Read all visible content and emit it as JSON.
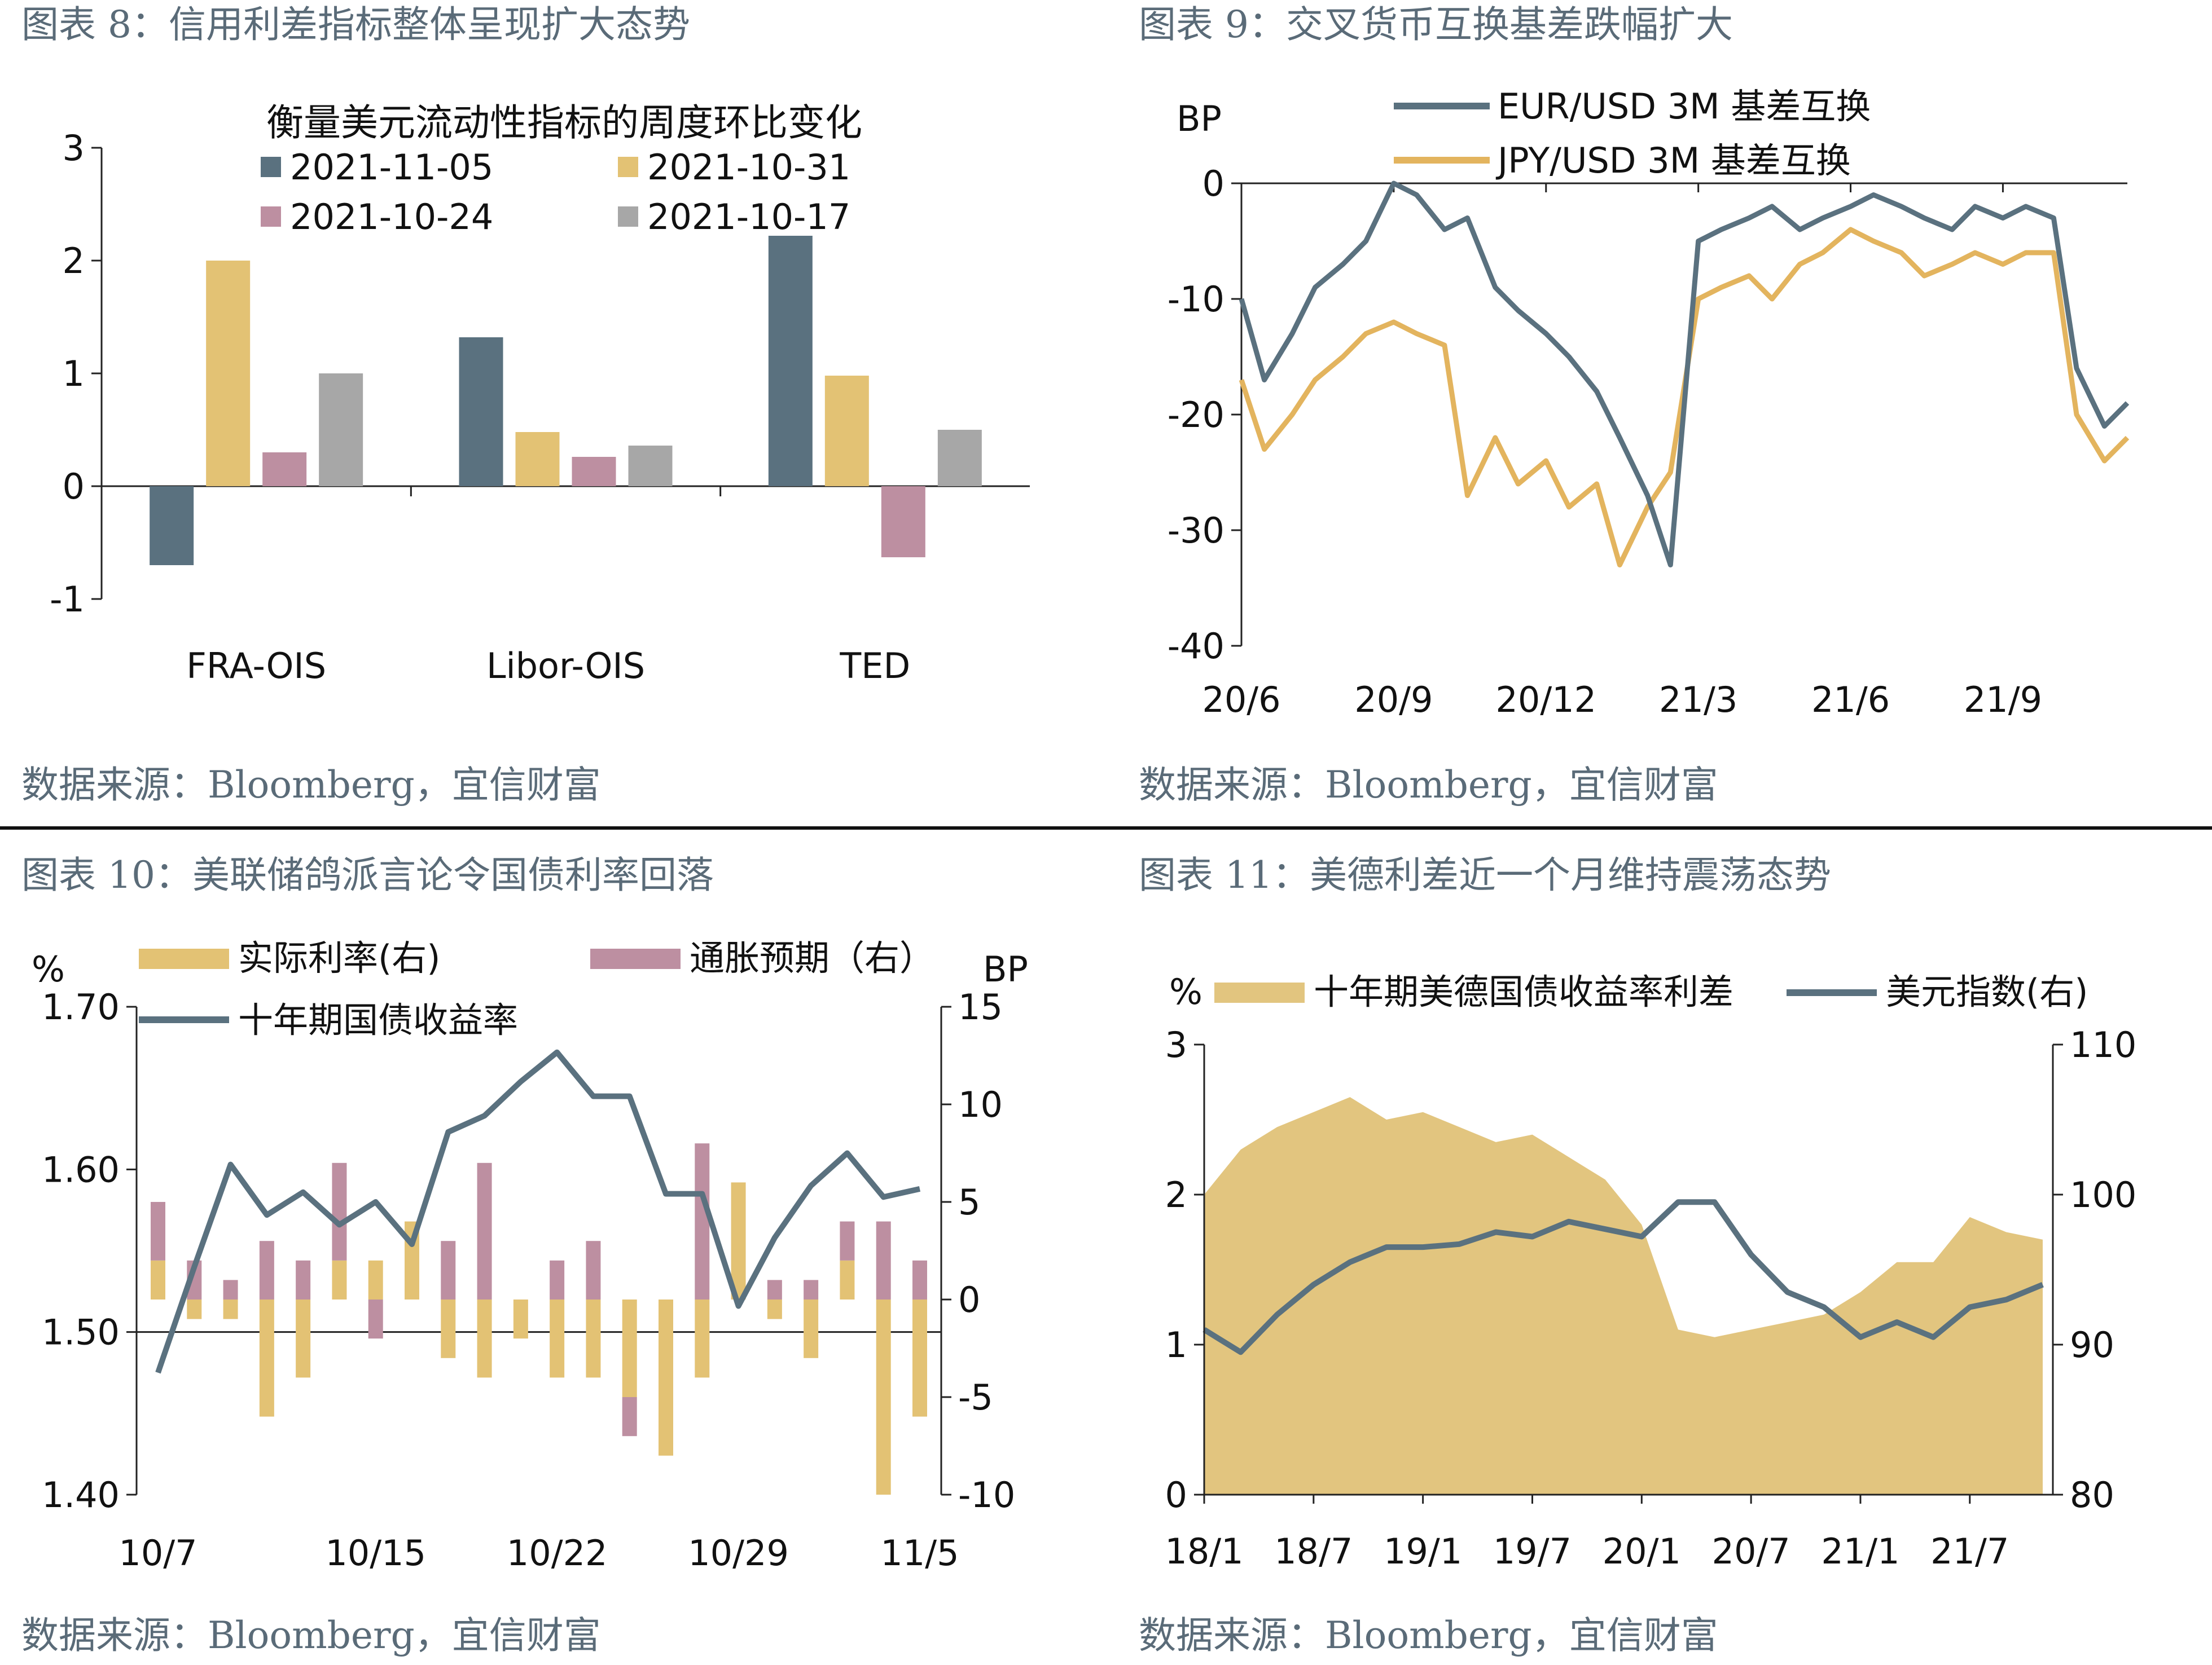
{
  "colors": {
    "slate": "#5a717f",
    "gold": "#e3c274",
    "mauve": "#bd8fa1",
    "gray": "#a7a7a7",
    "caption": "#5a6b78",
    "fill_gold": "#e2c57f"
  },
  "panels": [
    {
      "caption": "图表 8：信用利差指标整体呈现扩大态势",
      "source": "数据来源：Bloomberg，宜信财富"
    },
    {
      "caption": "图表 9：交叉货币互换基差跌幅扩大",
      "source": "数据来源：Bloomberg，宜信财富"
    },
    {
      "caption": "图表  10：美联储鸽派言论令国债利率回落",
      "source": "数据来源：Bloomberg，宜信财富"
    },
    {
      "caption": "图表  11：美德利差近一个月维持震荡态势",
      "source": "数据来源：Bloomberg，宜信财富"
    }
  ],
  "chart_data": [
    {
      "type": "bar",
      "title": "衡量美元流动性指标的周度环比变化",
      "categories": [
        "FRA-OIS",
        "Libor-OIS",
        "TED"
      ],
      "series": [
        {
          "name": "2021-11-05",
          "values": [
            -0.7,
            1.32,
            2.22
          ]
        },
        {
          "name": "2021-10-31",
          "values": [
            2.0,
            0.48,
            0.98
          ]
        },
        {
          "name": "2021-10-24",
          "values": [
            0.3,
            0.26,
            -0.63
          ]
        },
        {
          "name": "2021-10-17",
          "values": [
            1.0,
            0.36,
            0.5
          ]
        }
      ],
      "ylim": [
        -1,
        3
      ],
      "yticks": [
        "3",
        "2",
        "1",
        "0",
        "-1"
      ],
      "legend": "top"
    },
    {
      "type": "line",
      "ylabel": "BP",
      "ylim": [
        -40,
        0
      ],
      "yticks": [
        "0",
        "-10",
        "-20",
        "-30",
        "-40"
      ],
      "xticks": [
        "20/6",
        "20/9",
        "20/12",
        "21/3",
        "21/6",
        "21/9"
      ],
      "series": [
        {
          "name": "EUR/USD 3M 基差互换",
          "x": [
            "20/6/1",
            "20/6/15",
            "20/7/1",
            "20/7/15",
            "20/8/1",
            "20/8/15",
            "20/9/1",
            "20/9/15",
            "20/10/1",
            "20/10/15",
            "20/11/1",
            "20/11/15",
            "20/12/1",
            "20/12/15",
            "21/1/1",
            "21/1/15",
            "21/2/1",
            "21/2/15",
            "21/3/1",
            "21/3/15",
            "21/4/1",
            "21/4/15",
            "21/5/1",
            "21/5/15",
            "21/6/1",
            "21/6/15",
            "21/7/1",
            "21/7/15",
            "21/8/1",
            "21/8/15",
            "21/9/1",
            "21/9/15",
            "21/10/1",
            "21/10/15",
            "21/11/1",
            "21/11/15"
          ],
          "values": [
            -10,
            -17,
            -13,
            -9,
            -7,
            -5,
            0,
            -1,
            -4,
            -3,
            -9,
            -11,
            -13,
            -15,
            -18,
            -22,
            -27,
            -33,
            -5,
            -4,
            -3,
            -2,
            -4,
            -3,
            -2,
            -1,
            -2,
            -3,
            -4,
            -2,
            -3,
            -2,
            -3,
            -16,
            -21,
            -19
          ]
        },
        {
          "name": "JPY/USD 3M 基差互换",
          "x": [
            "20/6/1",
            "20/6/15",
            "20/7/1",
            "20/7/15",
            "20/8/1",
            "20/8/15",
            "20/9/1",
            "20/9/15",
            "20/10/1",
            "20/10/15",
            "20/11/1",
            "20/11/15",
            "20/12/1",
            "20/12/15",
            "21/1/1",
            "21/1/15",
            "21/2/1",
            "21/2/15",
            "21/3/1",
            "21/3/15",
            "21/4/1",
            "21/4/15",
            "21/5/1",
            "21/5/15",
            "21/6/1",
            "21/6/15",
            "21/7/1",
            "21/7/15",
            "21/8/1",
            "21/8/15",
            "21/9/1",
            "21/9/15",
            "21/10/1",
            "21/10/15",
            "21/11/1",
            "21/11/15"
          ],
          "values": [
            -17,
            -23,
            -20,
            -17,
            -15,
            -13,
            -12,
            -13,
            -14,
            -27,
            -22,
            -26,
            -24,
            -28,
            -26,
            -33,
            -28,
            -25,
            -10,
            -9,
            -8,
            -10,
            -7,
            -6,
            -4,
            -5,
            -6,
            -8,
            -7,
            -6,
            -7,
            -6,
            -6,
            -20,
            -24,
            -22
          ]
        }
      ],
      "legend": "top"
    },
    {
      "type": "bar",
      "xticks": [
        "10/7",
        "10/15",
        "10/22",
        "10/29",
        "11/5"
      ],
      "left_axis": {
        "label": "%",
        "ylim": [
          1.4,
          1.7
        ],
        "ticks": [
          "1.70",
          "1.60",
          "1.50",
          "1.40"
        ]
      },
      "right_axis": {
        "label": "BP",
        "ylim": [
          -10,
          15
        ],
        "ticks": [
          "15",
          "10",
          "5",
          "0",
          "-5",
          "-10"
        ]
      },
      "x": [
        "10/7",
        "10/8",
        "10/11",
        "10/12",
        "10/13",
        "10/14",
        "10/15",
        "10/18",
        "10/19",
        "10/20",
        "10/21",
        "10/22",
        "10/25",
        "10/26",
        "10/27",
        "10/28",
        "10/29",
        "11/1",
        "11/2",
        "11/3",
        "11/4",
        "11/5"
      ],
      "series": [
        {
          "name": "实际利率(右)",
          "kind": "bar",
          "axis": "right",
          "values": [
            2,
            -1,
            -1,
            -6,
            -4,
            2,
            2,
            4,
            -3,
            -4,
            -2,
            -4,
            -4,
            -5,
            -8,
            -4,
            6,
            -1,
            -3,
            2,
            -10,
            -6
          ]
        },
        {
          "name": "通胀预期（右）",
          "kind": "bar",
          "axis": "right",
          "values": [
            3,
            2,
            1,
            3,
            2,
            5,
            -2,
            0,
            3,
            7,
            0,
            2,
            3,
            -2,
            0,
            8,
            0,
            1,
            1,
            2,
            4,
            2
          ]
        },
        {
          "name": "十年期国债收益率",
          "kind": "line",
          "axis": "left",
          "values": [
            1.475,
            1.54,
            1.603,
            1.572,
            1.586,
            1.566,
            1.58,
            1.554,
            1.623,
            1.633,
            1.654,
            1.672,
            1.645,
            1.645,
            1.585,
            1.585,
            1.516,
            1.558,
            1.59,
            1.61,
            1.583,
            1.588
          ]
        }
      ],
      "legend": "top"
    },
    {
      "type": "area",
      "xticks": [
        "18/1",
        "18/7",
        "19/1",
        "19/7",
        "20/1",
        "20/7",
        "21/1",
        "21/7"
      ],
      "left_axis": {
        "label": "%",
        "ylim": [
          0,
          3
        ],
        "ticks": [
          "3",
          "2",
          "1",
          "0"
        ]
      },
      "right_axis": {
        "label": "",
        "ylim": [
          80,
          110
        ],
        "ticks": [
          "110",
          "100",
          "90",
          "80"
        ]
      },
      "x": [
        "18/1",
        "18/3",
        "18/5",
        "18/7",
        "18/9",
        "18/11",
        "19/1",
        "19/3",
        "19/5",
        "19/7",
        "19/9",
        "19/11",
        "20/1",
        "20/3",
        "20/5",
        "20/7",
        "20/9",
        "20/11",
        "21/1",
        "21/3",
        "21/5",
        "21/7",
        "21/9",
        "21/11"
      ],
      "series": [
        {
          "name": "十年期美德国债收益率利差",
          "kind": "area",
          "axis": "left",
          "values": [
            2.0,
            2.3,
            2.45,
            2.55,
            2.65,
            2.5,
            2.55,
            2.45,
            2.35,
            2.4,
            2.25,
            2.1,
            1.8,
            1.1,
            1.05,
            1.1,
            1.15,
            1.2,
            1.35,
            1.55,
            1.55,
            1.85,
            1.75,
            1.7
          ]
        },
        {
          "name": "美元指数(右)",
          "kind": "line",
          "axis": "right",
          "values": [
            91,
            89.5,
            92,
            94,
            95.5,
            96.5,
            96.5,
            96.7,
            97.5,
            97.2,
            98.2,
            97.7,
            97.2,
            99.5,
            99.5,
            96,
            93.5,
            92.5,
            90.5,
            91.5,
            90.5,
            92.5,
            93,
            94
          ]
        }
      ],
      "legend": "top"
    }
  ]
}
